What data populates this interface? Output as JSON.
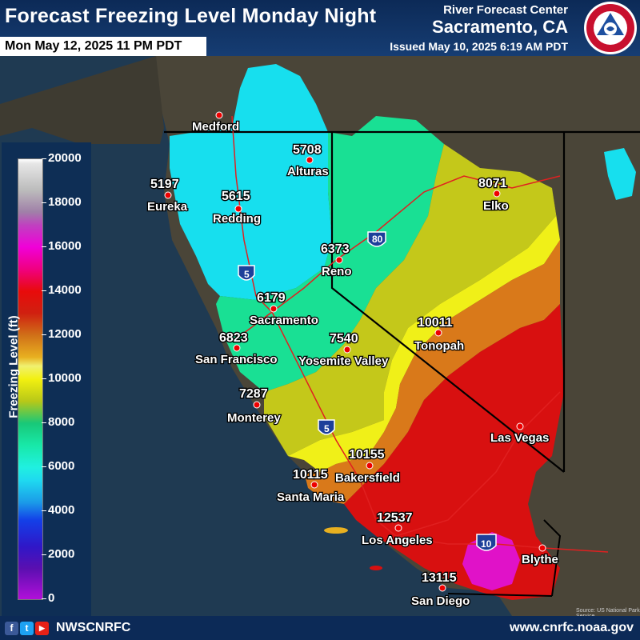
{
  "header": {
    "title": "Forecast Freezing Level Monday Night",
    "valid_time": "Mon May 12, 2025 11 PM PDT",
    "office_line1": "River Forecast Center",
    "office_line2": "Sacramento, CA",
    "issued": "Issued May 10, 2025 6:19 AM PDT",
    "logo_ring_text": "NATIONAL WEATHER SERVICE"
  },
  "legend": {
    "title": "Freezing Level (ft)",
    "labels": [
      "20000",
      "18000",
      "16000",
      "14000",
      "12000",
      "10000",
      "8000",
      "6000",
      "4000",
      "2000",
      "0"
    ]
  },
  "highways": [
    "80",
    "5",
    "5",
    "10"
  ],
  "cities": {
    "medford": {
      "name": "Medford",
      "value": ""
    },
    "eureka": {
      "name": "Eureka",
      "value": "5197"
    },
    "redding": {
      "name": "Redding",
      "value": "5615"
    },
    "alturas": {
      "name": "Alturas",
      "value": "5708"
    },
    "elko": {
      "name": "Elko",
      "value": "8071"
    },
    "reno": {
      "name": "Reno",
      "value": "6373"
    },
    "sacramento": {
      "name": "Sacramento",
      "value": "6179"
    },
    "san_francisco": {
      "name": "San Francisco",
      "value": "6823"
    },
    "yosemite": {
      "name": "Yosemite Valley",
      "value": "7540"
    },
    "tonopah": {
      "name": "Tonopah",
      "value": "10011"
    },
    "monterey": {
      "name": "Monterey",
      "value": "7287"
    },
    "las_vegas": {
      "name": "Las Vegas",
      "value": ""
    },
    "bakersfield": {
      "name": "Bakersfield",
      "value": "10155"
    },
    "santa_maria": {
      "name": "Santa Maria",
      "value": "10115"
    },
    "los_angeles": {
      "name": "Los Angeles",
      "value": "12537"
    },
    "blythe": {
      "name": "Blythe",
      "value": ""
    },
    "san_diego": {
      "name": "San Diego",
      "value": "13115"
    }
  },
  "source_note": "Source: US National Park Service",
  "footer": {
    "social_icons": [
      "facebook-icon",
      "twitter-icon",
      "youtube-icon"
    ],
    "social_glyphs": [
      "f",
      "t",
      "▶"
    ],
    "handle": "NWSCNRFC",
    "website": "www.cnrfc.noaa.gov"
  },
  "colors": {
    "header_bg": "#0c2a57",
    "ocean": "#1f3a52",
    "land": "#4a4538",
    "city_dot": "#ee0000"
  }
}
